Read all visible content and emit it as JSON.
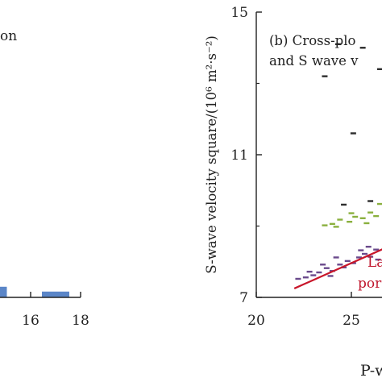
{
  "chart_data": [
    {
      "type": "bar",
      "title_fragment": "on",
      "x_ticks": [
        "16",
        "18"
      ],
      "xlim": [
        10,
        18
      ],
      "bars": [
        {
          "x": 14.5,
          "value": 0.22
        },
        {
          "x": 17.0,
          "value": 0.12
        }
      ],
      "bar_color": "#5b86c8"
    },
    {
      "type": "scatter",
      "panel_title_lines": [
        "(b) Cross-plo",
        "and S wave v"
      ],
      "xlabel": "P-w",
      "ylabel": "S-wave velocity square/(10⁶ m²·s⁻²)",
      "xlim": [
        20,
        30
      ],
      "ylim": [
        7,
        15
      ],
      "x_ticks": [
        "20",
        "25"
      ],
      "y_ticks": [
        "7",
        "11",
        "15"
      ],
      "annotation_lines": [
        "La",
        "por"
      ],
      "annotation_color": "#c0182e",
      "trend_line": {
        "x": [
          22,
          30
        ],
        "y": [
          7.25,
          9.15
        ],
        "color": "#c8162a"
      },
      "series": [
        {
          "color": "#2d2d2d",
          "points": [
            [
              24.3,
              14.1
            ],
            [
              25.6,
              14.0
            ],
            [
              26.5,
              13.4
            ],
            [
              23.6,
              13.2
            ],
            [
              28.4,
              12.6
            ],
            [
              27.3,
              12.1
            ],
            [
              25.1,
              11.6
            ],
            [
              28.8,
              11.3
            ],
            [
              29.5,
              11.9
            ],
            [
              26.9,
              10.4
            ],
            [
              28.1,
              10.0
            ],
            [
              24.6,
              9.6
            ],
            [
              29.7,
              12.3
            ],
            [
              27.7,
              11.0
            ],
            [
              26.0,
              9.7
            ]
          ]
        },
        {
          "color": "#8ab03e",
          "points": [
            [
              23.6,
              9.02
            ],
            [
              24.0,
              9.06
            ],
            [
              24.4,
              9.18
            ],
            [
              24.9,
              9.12
            ],
            [
              25.2,
              9.26
            ],
            [
              25.6,
              9.22
            ],
            [
              26.0,
              9.38
            ],
            [
              26.3,
              9.28
            ],
            [
              26.7,
              9.46
            ],
            [
              27.0,
              9.56
            ],
            [
              27.3,
              9.44
            ],
            [
              27.7,
              9.72
            ],
            [
              28.1,
              9.62
            ],
            [
              28.4,
              9.9
            ],
            [
              28.8,
              9.82
            ],
            [
              29.1,
              10.12
            ],
            [
              29.4,
              10.4
            ],
            [
              29.7,
              10.62
            ],
            [
              24.2,
              8.98
            ],
            [
              25.0,
              9.36
            ],
            [
              25.8,
              9.08
            ],
            [
              26.5,
              9.62
            ],
            [
              27.5,
              9.82
            ],
            [
              28.6,
              10.22
            ],
            [
              29.0,
              10.52
            ],
            [
              29.6,
              10.32
            ],
            [
              26.9,
              9.3
            ],
            [
              28.0,
              10.02
            ],
            [
              27.2,
              9.7
            ],
            [
              29.3,
              10.82
            ]
          ]
        },
        {
          "color": "#6a4a8c",
          "points": [
            [
              22.2,
              7.52
            ],
            [
              22.6,
              7.56
            ],
            [
              23.0,
              7.62
            ],
            [
              23.3,
              7.7
            ],
            [
              23.7,
              7.82
            ],
            [
              24.0,
              7.74
            ],
            [
              24.4,
              7.92
            ],
            [
              24.8,
              8.02
            ],
            [
              25.1,
              7.96
            ],
            [
              25.4,
              8.12
            ],
            [
              25.7,
              8.22
            ],
            [
              26.0,
              8.14
            ],
            [
              26.3,
              8.34
            ],
            [
              26.6,
              8.42
            ],
            [
              26.9,
              8.32
            ],
            [
              27.2,
              8.52
            ],
            [
              27.5,
              8.62
            ],
            [
              27.8,
              8.56
            ],
            [
              28.1,
              8.72
            ],
            [
              28.4,
              8.82
            ],
            [
              28.7,
              8.78
            ],
            [
              29.0,
              8.92
            ],
            [
              29.3,
              9.02
            ],
            [
              29.6,
              8.96
            ],
            [
              23.5,
              7.92
            ],
            [
              24.6,
              7.84
            ],
            [
              25.5,
              8.32
            ],
            [
              26.4,
              8.06
            ],
            [
              27.3,
              8.72
            ],
            [
              28.2,
              8.46
            ],
            [
              29.1,
              9.12
            ],
            [
              24.2,
              8.12
            ],
            [
              25.9,
              8.42
            ],
            [
              27.0,
              8.12
            ],
            [
              28.8,
              9.08
            ],
            [
              22.8,
              7.72
            ],
            [
              23.9,
              7.6
            ],
            [
              26.8,
              8.62
            ],
            [
              28.6,
              8.62
            ],
            [
              29.5,
              9.22
            ]
          ]
        }
      ]
    }
  ]
}
